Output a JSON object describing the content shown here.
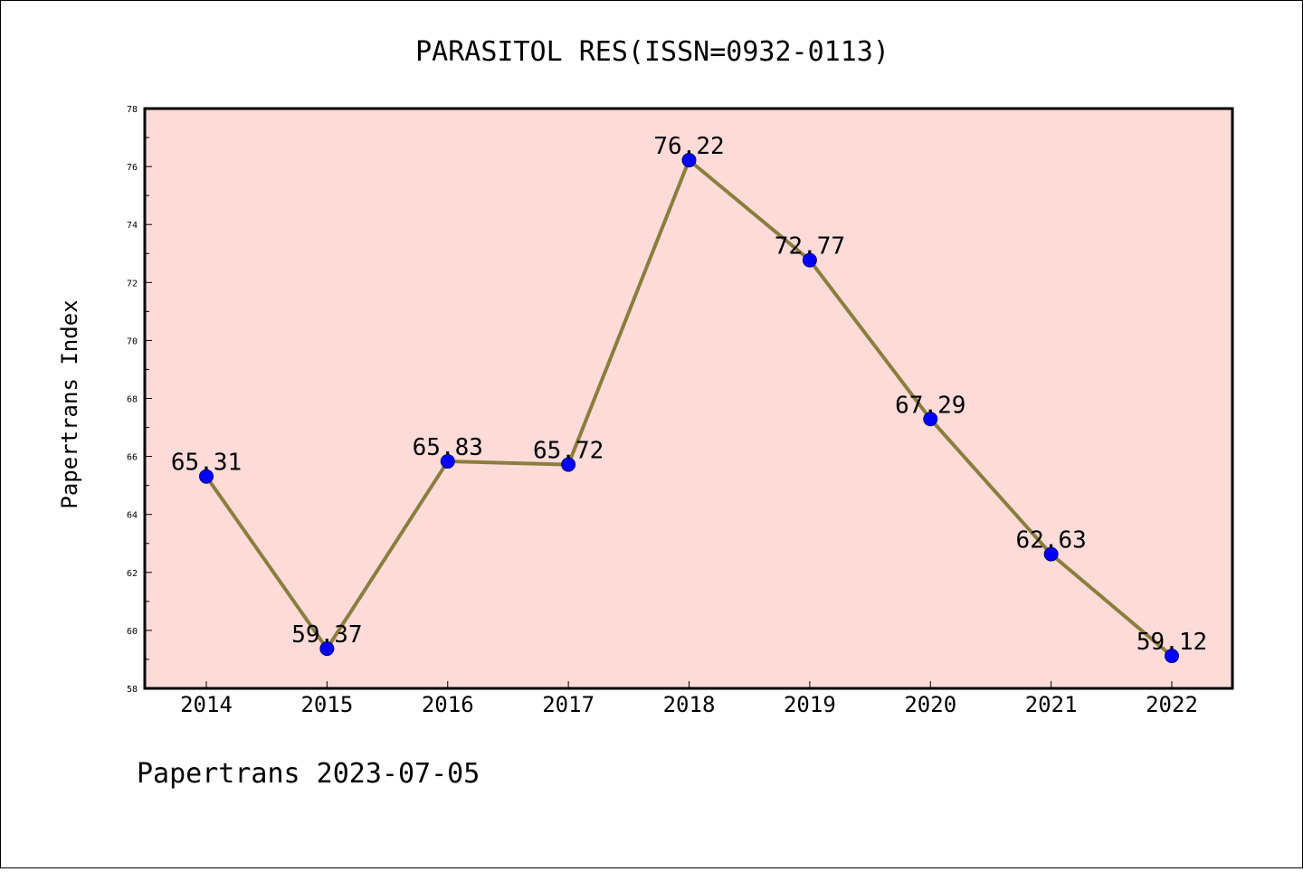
{
  "chart_data": {
    "type": "line",
    "title": "PARASITOL RES(ISSN=0932-0113)",
    "xlabel": "",
    "ylabel": "Papertrans Index",
    "categories": [
      "2014",
      "2015",
      "2016",
      "2017",
      "2018",
      "2019",
      "2020",
      "2021",
      "2022"
    ],
    "series": [
      {
        "values": [
          65.31,
          59.37,
          65.83,
          65.72,
          76.22,
          72.77,
          67.29,
          62.63,
          59.12
        ]
      }
    ],
    "data_labels": [
      "65.31",
      "59.37",
      "65.83",
      "65.72",
      "76.22",
      "72.77",
      "67.29",
      "62.63",
      "59.12"
    ],
    "ylim": [
      58,
      78
    ],
    "yticks": [
      "58",
      "60",
      "62",
      "64",
      "66",
      "68",
      "70",
      "72",
      "74",
      "76",
      "78"
    ],
    "grid": false,
    "legend": "none"
  },
  "footer": {
    "text": "Papertrans 2023-07-05"
  },
  "colors": {
    "plot_background": "#fddbd8",
    "line": "#8b7d3e",
    "marker_fill": "#0000ff",
    "marker_edge": "#000080",
    "axes": "#000000"
  }
}
